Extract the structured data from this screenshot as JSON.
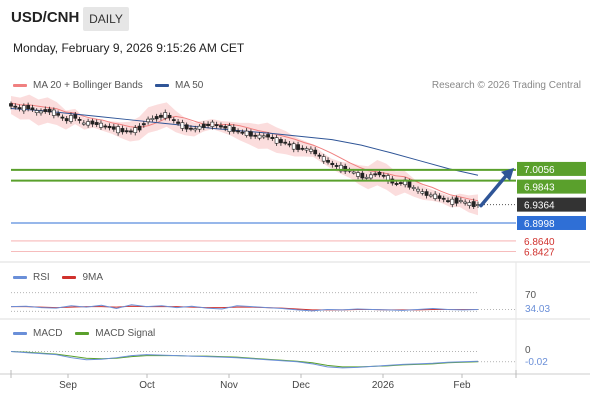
{
  "header": {
    "symbol": "USD/CNH",
    "timeframe_badge": "DAILY",
    "datetime": "Monday, February 9, 2026 9:15:26 AM CET"
  },
  "legend": {
    "ma20_label": "MA 20 + Bollinger Bands",
    "ma50_label": "MA 50",
    "credit": "Research © 2026 Trading Central",
    "rsi_label": "RSI",
    "rsi_ma_label": "9MA",
    "macd_label": "MACD",
    "macd_signal_label": "MACD Signal"
  },
  "colors": {
    "ma20": "#f08080",
    "band_fill": "#fbd9d9",
    "ma50": "#2f5597",
    "resistance": "#5aa02c",
    "support": "#2f6fd6",
    "support_faint": "#f08080",
    "candle_up": "#ffffff",
    "candle_down": "#222222",
    "arrow": "#2f5597",
    "rsi": "#6a8fd8",
    "rsi_ma": "#d0312d",
    "macd": "#6a8fd8",
    "macd_signal": "#5aa02c"
  },
  "chart_data": [
    {
      "type": "candlestick",
      "title": "USD/CNH",
      "x_tick_labels": [
        "Sep",
        "Oct",
        "Nov",
        "Dec",
        "2026",
        "Feb"
      ],
      "levels": {
        "resistance": [
          7.0056,
          6.9843
        ],
        "current": 6.9364,
        "support": [
          6.8998,
          6.864,
          6.8427
        ]
      },
      "level_labels": [
        "7.0056",
        "6.9843",
        "6.9364",
        "6.8998",
        "6.8640",
        "6.8427"
      ],
      "price_path": [
        7.135,
        7.128,
        7.131,
        7.12,
        7.125,
        7.118,
        7.105,
        7.112,
        7.098,
        7.1,
        7.094,
        7.09,
        7.085,
        7.082,
        7.088,
        7.105,
        7.11,
        7.116,
        7.102,
        7.092,
        7.086,
        7.093,
        7.097,
        7.092,
        7.088,
        7.082,
        7.078,
        7.072,
        7.074,
        7.065,
        7.06,
        7.052,
        7.048,
        7.044,
        7.03,
        7.018,
        7.01,
        7.005,
        6.996,
        6.99,
        7.0,
        6.992,
        6.978,
        6.982,
        6.97,
        6.96,
        6.955,
        6.95,
        6.942,
        6.945,
        6.938,
        6.936
      ],
      "ma50_path": [
        7.128,
        7.124,
        7.118,
        7.112,
        7.106,
        7.1,
        7.094,
        7.088,
        7.083,
        7.078,
        7.072,
        7.066,
        7.055,
        7.04,
        7.024,
        7.008,
        6.995
      ],
      "annotation": "projected move up toward 7.0056"
    },
    {
      "type": "line",
      "title": "RSI",
      "series_names": [
        "RSI",
        "9MA"
      ],
      "ref_levels": [
        70,
        30
      ],
      "tick_labels": [
        "70",
        "34.03"
      ],
      "last_value": 34.03,
      "rsi_path": [
        40,
        41,
        38,
        37,
        42,
        39,
        43,
        36,
        44,
        40,
        42,
        38,
        41,
        37,
        35,
        42,
        40,
        38,
        36,
        33,
        31,
        34,
        33,
        35,
        34,
        33,
        32,
        34,
        36,
        34,
        33,
        34
      ],
      "rsi_ma_path": [
        40,
        40,
        39,
        38,
        39,
        40,
        40,
        39,
        41,
        40,
        40,
        40,
        39,
        38,
        38,
        39,
        39,
        38,
        37,
        35,
        33,
        33,
        33,
        34,
        34,
        33,
        33,
        33,
        34,
        34,
        34,
        34
      ]
    },
    {
      "type": "line",
      "title": "MACD",
      "series_names": [
        "MACD",
        "MACD Signal"
      ],
      "tick_labels": [
        "0",
        "-0.02"
      ],
      "last_value": -0.02,
      "macd_path": [
        0.0,
        -0.002,
        -0.004,
        -0.006,
        -0.012,
        -0.016,
        -0.015,
        -0.012,
        -0.008,
        -0.006,
        -0.007,
        -0.008,
        -0.009,
        -0.01,
        -0.011,
        -0.012,
        -0.014,
        -0.016,
        -0.018,
        -0.02,
        -0.024,
        -0.03,
        -0.032,
        -0.031,
        -0.029,
        -0.027,
        -0.025,
        -0.024,
        -0.023,
        -0.021,
        -0.02,
        -0.019
      ],
      "signal_path": [
        0.0,
        -0.001,
        -0.003,
        -0.005,
        -0.009,
        -0.013,
        -0.014,
        -0.013,
        -0.01,
        -0.008,
        -0.008,
        -0.008,
        -0.009,
        -0.009,
        -0.01,
        -0.011,
        -0.013,
        -0.015,
        -0.017,
        -0.019,
        -0.022,
        -0.027,
        -0.03,
        -0.03,
        -0.029,
        -0.028,
        -0.026,
        -0.025,
        -0.024,
        -0.022,
        -0.021,
        -0.02
      ]
    }
  ]
}
